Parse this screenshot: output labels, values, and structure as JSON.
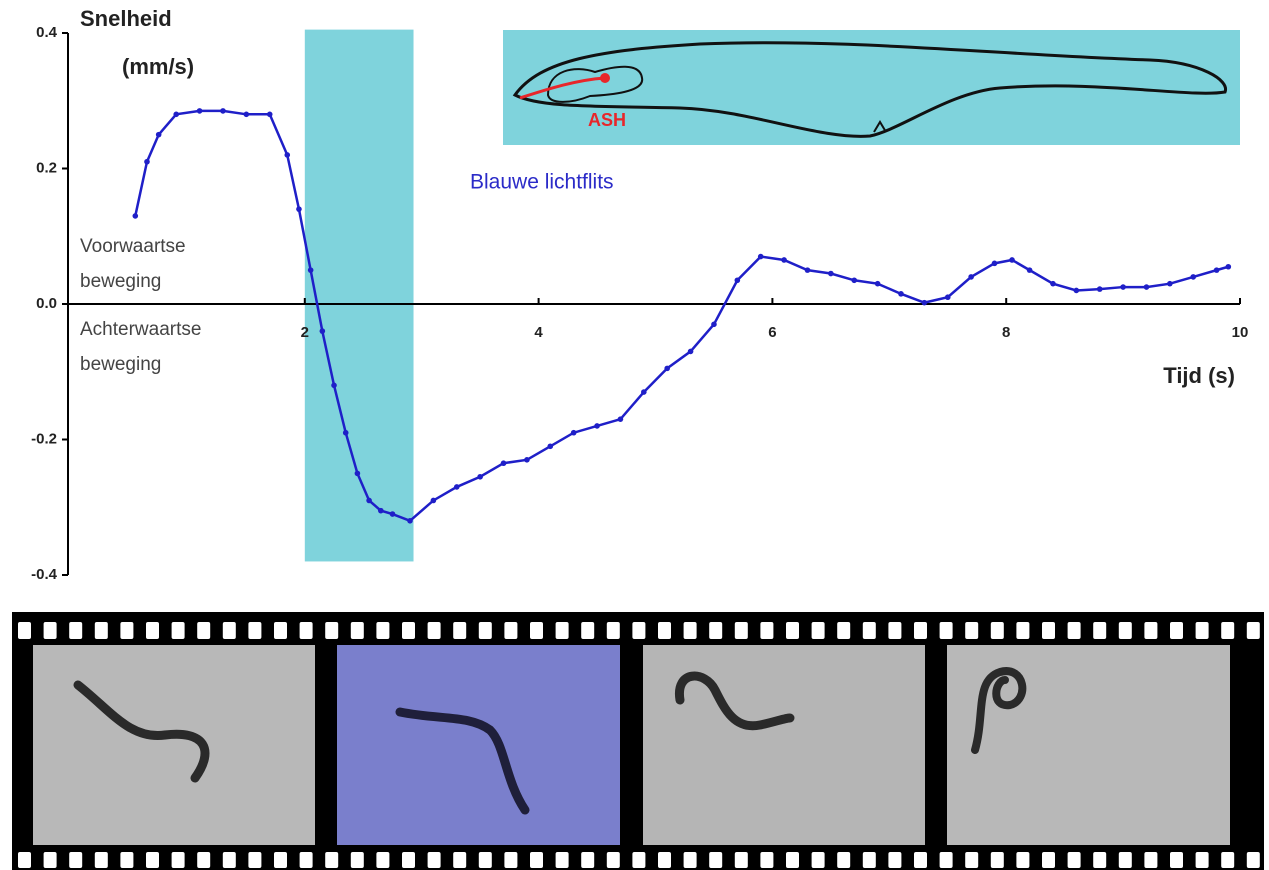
{
  "chart_data": {
    "type": "line",
    "ylabel": [
      "Snelheid",
      "(mm/s)"
    ],
    "xlabel": "Tijd (s)",
    "annotations": {
      "flash": "Blauwe lichtflits",
      "forward": [
        "Voorwaartse",
        "beweging"
      ],
      "backward": [
        "Achterwaartse",
        "beweging"
      ],
      "neuron": "ASH"
    },
    "flash_span": {
      "x": [
        2,
        2.93
      ],
      "y": [
        -0.38,
        0.405
      ],
      "color": "#7fd3dc"
    },
    "xlim": [
      0,
      10
    ],
    "xticks": [
      2,
      4,
      6,
      8,
      10
    ],
    "ylim": [
      -0.4,
      0.4
    ],
    "yticks": [
      0.4,
      0.2,
      {
        "value": 0,
        "label": "0.0"
      },
      -0.2,
      -0.4
    ],
    "x": [
      0.55,
      0.65,
      0.75,
      0.9,
      1.1,
      1.3,
      1.5,
      1.7,
      1.85,
      1.95,
      2.05,
      2.15,
      2.25,
      2.35,
      2.45,
      2.55,
      2.65,
      2.75,
      2.9,
      3.1,
      3.3,
      3.5,
      3.7,
      3.9,
      4.1,
      4.3,
      4.5,
      4.7,
      4.9,
      5.1,
      5.3,
      5.5,
      5.7,
      5.9,
      6.1,
      6.3,
      6.5,
      6.7,
      6.9,
      7.1,
      7.3,
      7.5,
      7.7,
      7.9,
      8.05,
      8.2,
      8.4,
      8.6,
      8.8,
      9.0,
      9.2,
      9.4,
      9.6,
      9.8,
      9.9
    ],
    "series": [
      {
        "color": "#1f1fc8",
        "values": [
          0.13,
          0.21,
          0.25,
          0.28,
          0.285,
          0.285,
          0.28,
          0.28,
          0.22,
          0.14,
          0.05,
          -0.04,
          -0.12,
          -0.19,
          -0.25,
          -0.29,
          -0.305,
          -0.31,
          -0.32,
          -0.29,
          -0.27,
          -0.255,
          -0.235,
          -0.23,
          -0.21,
          -0.19,
          -0.18,
          -0.17,
          -0.13,
          -0.095,
          -0.07,
          -0.03,
          0.035,
          0.07,
          0.065,
          0.05,
          0.045,
          0.035,
          0.03,
          0.015,
          0.002,
          0.01,
          0.04,
          0.06,
          0.065,
          0.05,
          0.03,
          0.02,
          0.022,
          0.025,
          0.025,
          0.03,
          0.04,
          0.05,
          0.055
        ]
      }
    ]
  }
}
